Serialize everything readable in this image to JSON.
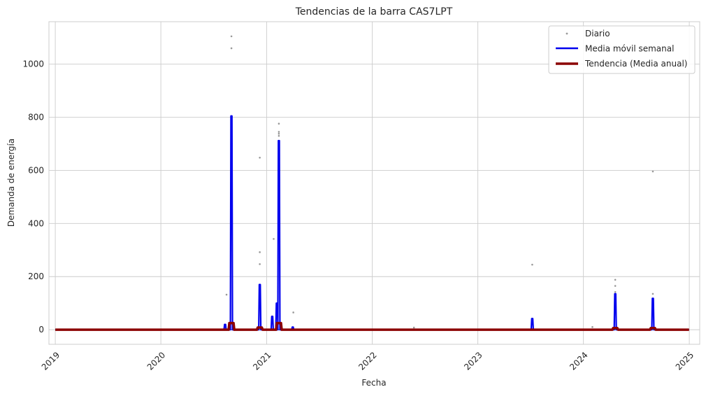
{
  "chart_data": {
    "type": "line",
    "title": "Tendencias de la barra CAS7LPT",
    "xlabel": "Fecha",
    "ylabel": "Demanda de energía",
    "x_ticks": [
      "2019",
      "2020",
      "2021",
      "2022",
      "2023",
      "2024",
      "2025"
    ],
    "y_ticks": [
      "0",
      "200",
      "400",
      "600",
      "800",
      "1000"
    ],
    "xlim": [
      "2018-12-10",
      "2025-02-06"
    ],
    "ylim": [
      -55,
      1160
    ],
    "x_range": [
      "2019-01-01",
      "2024-12-31"
    ],
    "grid": true,
    "legend_position": "top-right",
    "colors": {
      "daily": "#999999",
      "weekly": "#0000ee",
      "annual": "#8b0000",
      "grid": "#cccccc"
    },
    "series": [
      {
        "name": "Diario",
        "style": "points",
        "points": [
          {
            "x": "2020-08-15",
            "y": 132
          },
          {
            "x": "2020-09-01",
            "y": 1105
          },
          {
            "x": "2020-09-01",
            "y": 1060
          },
          {
            "x": "2020-09-01",
            "y": 760
          },
          {
            "x": "2020-09-01",
            "y": 690
          },
          {
            "x": "2020-09-01",
            "y": 655
          },
          {
            "x": "2020-09-01",
            "y": 380
          },
          {
            "x": "2020-12-08",
            "y": 648
          },
          {
            "x": "2020-12-08",
            "y": 292
          },
          {
            "x": "2020-12-08",
            "y": 247
          },
          {
            "x": "2021-01-25",
            "y": 342
          },
          {
            "x": "2021-02-12",
            "y": 776
          },
          {
            "x": "2021-02-12",
            "y": 745
          },
          {
            "x": "2021-02-12",
            "y": 738
          },
          {
            "x": "2021-02-12",
            "y": 730
          },
          {
            "x": "2021-02-12",
            "y": 658
          },
          {
            "x": "2021-04-03",
            "y": 65
          },
          {
            "x": "2022-05-25",
            "y": 8
          },
          {
            "x": "2023-07-08",
            "y": 245
          },
          {
            "x": "2024-02-01",
            "y": 10
          },
          {
            "x": "2024-04-20",
            "y": 188
          },
          {
            "x": "2024-04-20",
            "y": 165
          },
          {
            "x": "2024-04-20",
            "y": 142
          },
          {
            "x": "2024-08-28",
            "y": 596
          },
          {
            "x": "2024-08-28",
            "y": 135
          }
        ]
      },
      {
        "name": "Media móvil semanal",
        "style": "line",
        "spikes": [
          {
            "x": "2020-08-10",
            "y": 20
          },
          {
            "x": "2020-09-01",
            "y": 805
          },
          {
            "x": "2020-12-08",
            "y": 170
          },
          {
            "x": "2021-01-20",
            "y": 50
          },
          {
            "x": "2021-02-05",
            "y": 100
          },
          {
            "x": "2021-02-12",
            "y": 712
          },
          {
            "x": "2021-04-01",
            "y": 10
          },
          {
            "x": "2023-07-08",
            "y": 42
          },
          {
            "x": "2024-04-20",
            "y": 135
          },
          {
            "x": "2024-08-28",
            "y": 118
          }
        ]
      },
      {
        "name": "Tendencia (Media anual)",
        "style": "line",
        "bumps": [
          {
            "x": "2020-09-01",
            "y": 25
          },
          {
            "x": "2020-12-08",
            "y": 8
          },
          {
            "x": "2021-02-12",
            "y": 25
          },
          {
            "x": "2024-04-20",
            "y": 6
          },
          {
            "x": "2024-08-28",
            "y": 6
          }
        ]
      }
    ]
  }
}
